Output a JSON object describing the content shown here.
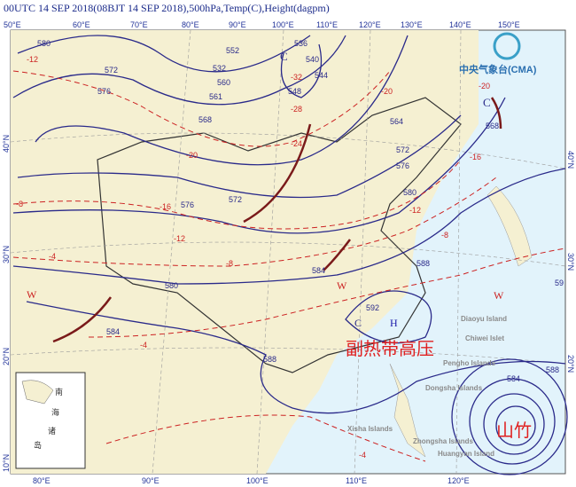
{
  "title": "00UTC 14  SEP 2018(08BJT 14  SEP 2018),500hPa,Temp(C),Height(dagpm)",
  "logo": {
    "text": "中央气象台(CMA)"
  },
  "axes": {
    "top_lon": [
      "50°E",
      "60°E",
      "70°E",
      "80°E",
      "90°E",
      "100°E",
      "110°E",
      "120°E",
      "130°E",
      "140°E",
      "150°E"
    ],
    "bottom_lon": [
      "80°E",
      "90°E",
      "100°E",
      "110°E",
      "120°E"
    ],
    "left_lat": [
      "40°N",
      "30°N",
      "20°N",
      "10°N"
    ],
    "right_lat": [
      "40°N",
      "30°N",
      "20°N"
    ]
  },
  "height_labels": [
    "580",
    "572",
    "576",
    "552",
    "536",
    "540",
    "544",
    "548",
    "532",
    "560",
    "561",
    "568",
    "564",
    "572",
    "576",
    "580",
    "584",
    "588",
    "592",
    "572",
    "576",
    "580",
    "584",
    "588",
    "584",
    "588",
    "568",
    "59"
  ],
  "temp_labels": [
    "-12",
    "-20",
    "-32",
    "-28",
    "-24",
    "-20",
    "-16",
    "-12",
    "-8",
    "-8",
    "-4",
    "-4",
    "-4",
    "-20",
    "-12",
    "-8",
    "-16"
  ],
  "centers": {
    "cold_1": "C",
    "cold_2": "C",
    "cold_3": "C",
    "high": "H",
    "warm_1": "W",
    "warm_2": "W",
    "warm_3": "W"
  },
  "places": [
    "Diaoyu Island",
    "Chiwei Islet",
    "Pengho Islands",
    "Dongsha Islands",
    "Xisha Islands",
    "Zhongsha Islands",
    "Huangyan Island"
  ],
  "inset_labels": [
    "南",
    "海",
    "诸",
    "岛"
  ],
  "annotations": {
    "subtropical_high": "副热带高压",
    "typhoon": "山竹"
  },
  "colors": {
    "land": "#f5f0d2",
    "sea": "#e2f3fb",
    "height": "#2a2a8a",
    "temp": "#cc2222",
    "trough": "#7a1a1a"
  }
}
